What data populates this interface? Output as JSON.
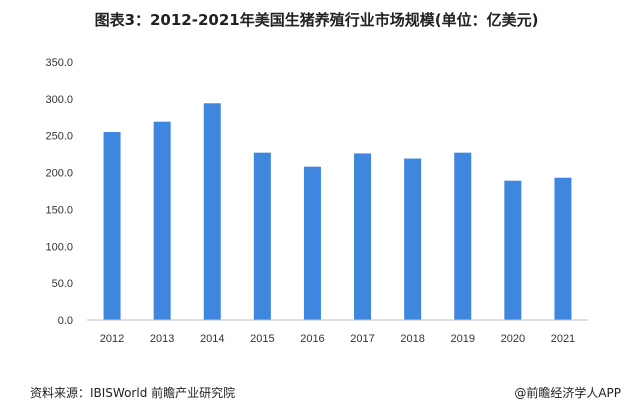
{
  "chart_data": {
    "type": "bar",
    "title": "图表3：2012-2021年美国生猪养殖行业市场规模(单位：亿美元)",
    "categories": [
      "2012",
      "2013",
      "2014",
      "2015",
      "2016",
      "2017",
      "2018",
      "2019",
      "2020",
      "2021"
    ],
    "values": [
      255,
      269,
      294,
      227,
      208,
      226,
      219,
      227,
      189,
      193
    ],
    "ylim": [
      0,
      350
    ],
    "yticks": [
      0,
      50,
      100,
      150,
      200,
      250,
      300,
      350
    ],
    "ytick_labels": [
      "0.0",
      "50.0",
      "100.0",
      "150.0",
      "200.0",
      "250.0",
      "300.0",
      "350.0"
    ],
    "grid": false,
    "bar_color": "#3f86de",
    "axis_color": "#bfbfbf"
  },
  "footer": {
    "source": "资料来源：IBISWorld 前瞻产业研究院",
    "credit": "@前瞻经济学人APP"
  }
}
